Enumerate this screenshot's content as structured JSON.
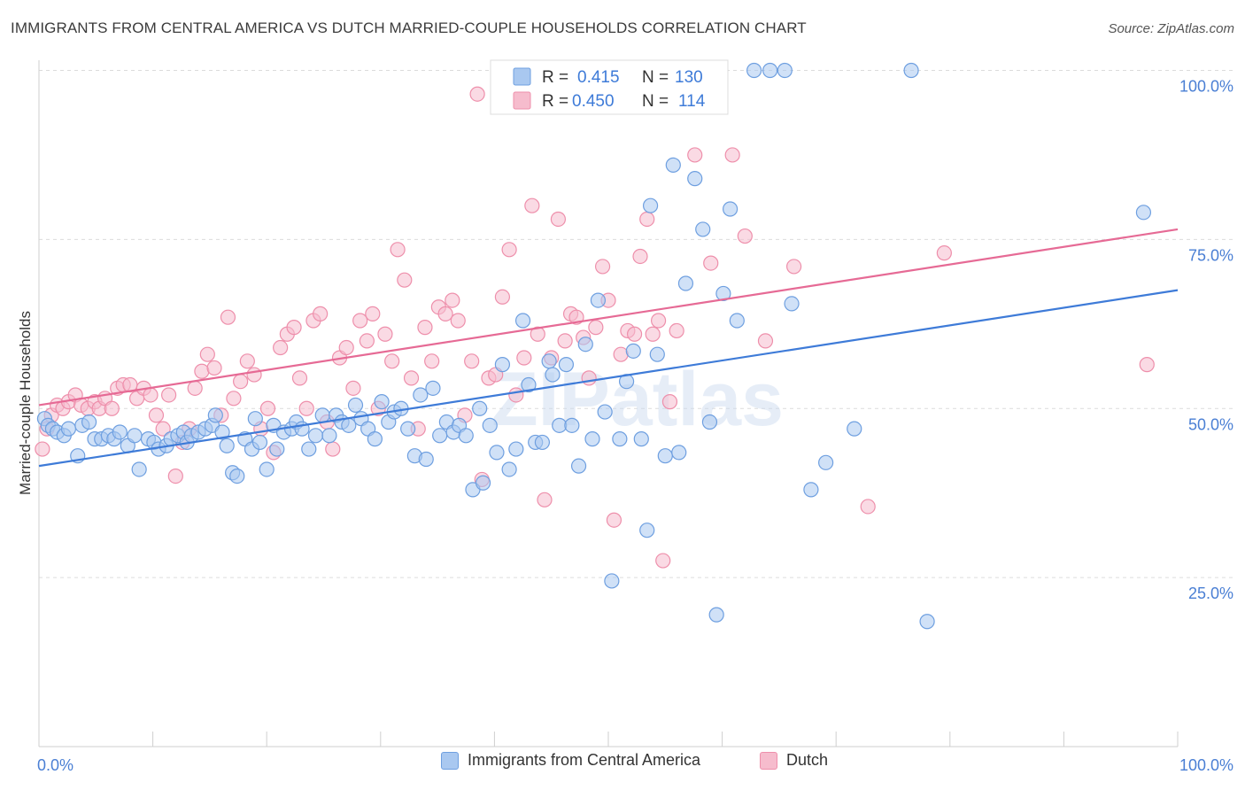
{
  "title": "IMMIGRANTS FROM CENTRAL AMERICA VS DUTCH MARRIED-COUPLE HOUSEHOLDS CORRELATION CHART",
  "source": "Source: ZipAtlas.com",
  "watermark": "ZIPatlas",
  "colors": {
    "blue_fill": "#a9c8f0",
    "blue_stroke": "#6e9fe0",
    "blue_line": "#3e7bd8",
    "pink_fill": "#f6bccd",
    "pink_stroke": "#ee8fab",
    "pink_line": "#e66a95",
    "tick_label": "#4a7fd4",
    "grid": "#dcdcdc"
  },
  "legend_top": {
    "rows": [
      {
        "r_label": "R =",
        "r_value": "0.415",
        "n_label": "N =",
        "n_value": "130",
        "series": "blue"
      },
      {
        "r_label": "R =",
        "r_value": "0.450",
        "n_label": "N =",
        "n_value": "114",
        "series": "pink"
      }
    ]
  },
  "legend_bottom": [
    {
      "label": "Immigrants from Central America",
      "series": "blue"
    },
    {
      "label": "Dutch",
      "series": "pink"
    }
  ],
  "chart_data": {
    "type": "scatter",
    "title": "IMMIGRANTS FROM CENTRAL AMERICA VS DUTCH MARRIED-COUPLE HOUSEHOLDS CORRELATION CHART",
    "xlabel": "",
    "ylabel": "Married-couple Households",
    "xlim": [
      0,
      100
    ],
    "ylim": [
      0,
      103
    ],
    "x_tick_labels": [
      "0.0%",
      "100.0%"
    ],
    "y_ticks": [
      25,
      50,
      75,
      100
    ],
    "y_tick_labels": [
      "25.0%",
      "50.0%",
      "75.0%",
      "100.0%"
    ],
    "grid": true,
    "legend_placement": "top-center",
    "series": [
      {
        "name": "Immigrants from Central America",
        "color": "#a9c8f0",
        "r": 0.415,
        "n": 130,
        "trend": [
          [
            0,
            41.5
          ],
          [
            100,
            67.5
          ]
        ],
        "points": [
          [
            0.5,
            48.5
          ],
          [
            0.8,
            47.5
          ],
          [
            1.2,
            47
          ],
          [
            1.6,
            46.5
          ],
          [
            2.2,
            46
          ],
          [
            2.6,
            47
          ],
          [
            3.4,
            43
          ],
          [
            3.8,
            47.5
          ],
          [
            4.4,
            48
          ],
          [
            4.9,
            45.5
          ],
          [
            5.5,
            45.5
          ],
          [
            6.1,
            46
          ],
          [
            6.6,
            45.5
          ],
          [
            7.1,
            46.5
          ],
          [
            7.8,
            44.5
          ],
          [
            8.4,
            46
          ],
          [
            8.8,
            41
          ],
          [
            9.6,
            45.5
          ],
          [
            10.1,
            45
          ],
          [
            10.5,
            44
          ],
          [
            11.2,
            44.5
          ],
          [
            11.6,
            45.5
          ],
          [
            12.2,
            46
          ],
          [
            12.7,
            46.5
          ],
          [
            13,
            45
          ],
          [
            13.4,
            46
          ],
          [
            14,
            46.5
          ],
          [
            14.6,
            47
          ],
          [
            15.2,
            47.5
          ],
          [
            15.5,
            49
          ],
          [
            16.1,
            46.5
          ],
          [
            16.5,
            44.5
          ],
          [
            17,
            40.5
          ],
          [
            17.4,
            40
          ],
          [
            18.1,
            45.5
          ],
          [
            18.7,
            44
          ],
          [
            19,
            48.5
          ],
          [
            19.4,
            45
          ],
          [
            20,
            41
          ],
          [
            20.6,
            47.5
          ],
          [
            20.9,
            44
          ],
          [
            21.5,
            46.5
          ],
          [
            22.2,
            47
          ],
          [
            22.6,
            48
          ],
          [
            23.1,
            47
          ],
          [
            23.7,
            44
          ],
          [
            24.3,
            46
          ],
          [
            24.9,
            49
          ],
          [
            25.5,
            46
          ],
          [
            26.1,
            49
          ],
          [
            26.6,
            48
          ],
          [
            27.2,
            47.5
          ],
          [
            27.8,
            50.5
          ],
          [
            28.3,
            48.5
          ],
          [
            28.9,
            47
          ],
          [
            29.5,
            45.5
          ],
          [
            30.1,
            51
          ],
          [
            30.7,
            48
          ],
          [
            31.2,
            49.5
          ],
          [
            31.8,
            50
          ],
          [
            32.4,
            47
          ],
          [
            33,
            43
          ],
          [
            33.5,
            52
          ],
          [
            34,
            42.5
          ],
          [
            34.6,
            53
          ],
          [
            35.2,
            46
          ],
          [
            35.8,
            48
          ],
          [
            36.4,
            46.5
          ],
          [
            36.9,
            47.5
          ],
          [
            37.5,
            46
          ],
          [
            38.1,
            38
          ],
          [
            38.7,
            50
          ],
          [
            39,
            39
          ],
          [
            39.6,
            47.5
          ],
          [
            40.2,
            43.5
          ],
          [
            40.7,
            56.5
          ],
          [
            41.3,
            41
          ],
          [
            41.9,
            44
          ],
          [
            42.5,
            63
          ],
          [
            43,
            53.5
          ],
          [
            43.6,
            45
          ],
          [
            44.2,
            45
          ],
          [
            44.8,
            57
          ],
          [
            45.1,
            55
          ],
          [
            45.7,
            47.5
          ],
          [
            46.3,
            56.5
          ],
          [
            46.8,
            47.5
          ],
          [
            47.4,
            41.5
          ],
          [
            48,
            59.5
          ],
          [
            48.6,
            45.5
          ],
          [
            49.1,
            66
          ],
          [
            49.7,
            49.5
          ],
          [
            50.3,
            24.5
          ],
          [
            51,
            45.5
          ],
          [
            51.6,
            54
          ],
          [
            52.2,
            58.5
          ],
          [
            52.9,
            45.5
          ],
          [
            53.4,
            32
          ],
          [
            53.7,
            80
          ],
          [
            54.3,
            58
          ],
          [
            55,
            43
          ],
          [
            55.7,
            86
          ],
          [
            56.2,
            43.5
          ],
          [
            56.8,
            68.5
          ],
          [
            57.6,
            84
          ],
          [
            58.3,
            76.5
          ],
          [
            58.9,
            48
          ],
          [
            59.5,
            19.5
          ],
          [
            60.1,
            67
          ],
          [
            60.7,
            79.5
          ],
          [
            61.3,
            63
          ],
          [
            62.8,
            100
          ],
          [
            64.2,
            100
          ],
          [
            65.5,
            100
          ],
          [
            66.1,
            65.5
          ],
          [
            67.8,
            38
          ],
          [
            69.1,
            42
          ],
          [
            71.6,
            47
          ],
          [
            76.6,
            100
          ],
          [
            78,
            18.5
          ],
          [
            97,
            79
          ]
        ]
      },
      {
        "name": "Dutch",
        "color": "#f6bccd",
        "r": 0.45,
        "n": 114,
        "trend": [
          [
            0,
            50.5
          ],
          [
            100,
            76.5
          ]
        ],
        "points": [
          [
            0.3,
            44
          ],
          [
            0.7,
            47
          ],
          [
            1.1,
            49
          ],
          [
            1.6,
            50.5
          ],
          [
            2.1,
            50
          ],
          [
            2.6,
            51
          ],
          [
            3.2,
            52
          ],
          [
            3.7,
            50.5
          ],
          [
            4.3,
            50
          ],
          [
            4.9,
            51
          ],
          [
            5.3,
            50
          ],
          [
            5.8,
            51.5
          ],
          [
            6.4,
            50
          ],
          [
            6.9,
            53
          ],
          [
            7.4,
            53.5
          ],
          [
            8,
            53.5
          ],
          [
            8.6,
            51.5
          ],
          [
            9.2,
            53
          ],
          [
            9.8,
            52
          ],
          [
            10.3,
            49
          ],
          [
            10.9,
            47
          ],
          [
            11.4,
            52
          ],
          [
            12,
            40
          ],
          [
            12.6,
            45
          ],
          [
            13.2,
            47
          ],
          [
            13.7,
            53
          ],
          [
            14.3,
            55.5
          ],
          [
            14.8,
            58
          ],
          [
            15.4,
            56
          ],
          [
            16,
            49
          ],
          [
            16.6,
            63.5
          ],
          [
            17.1,
            51.5
          ],
          [
            17.7,
            54
          ],
          [
            18.3,
            57
          ],
          [
            18.9,
            55
          ],
          [
            19.5,
            47
          ],
          [
            20.1,
            50
          ],
          [
            20.6,
            43.5
          ],
          [
            21.2,
            59
          ],
          [
            21.8,
            61
          ],
          [
            22.4,
            62
          ],
          [
            22.9,
            54.5
          ],
          [
            23.5,
            50
          ],
          [
            24.1,
            63
          ],
          [
            24.7,
            64
          ],
          [
            25.3,
            48
          ],
          [
            25.8,
            44
          ],
          [
            26.4,
            57.5
          ],
          [
            27,
            59
          ],
          [
            27.6,
            53
          ],
          [
            28.2,
            63
          ],
          [
            28.8,
            60
          ],
          [
            29.3,
            64
          ],
          [
            29.8,
            50
          ],
          [
            30.4,
            61
          ],
          [
            31,
            57
          ],
          [
            31.5,
            73.5
          ],
          [
            32.1,
            69
          ],
          [
            32.7,
            54.5
          ],
          [
            33.3,
            47
          ],
          [
            33.9,
            62
          ],
          [
            34.5,
            57
          ],
          [
            35.1,
            65
          ],
          [
            35.7,
            64
          ],
          [
            36.3,
            66
          ],
          [
            36.8,
            63
          ],
          [
            37.4,
            49
          ],
          [
            38,
            57
          ],
          [
            38.5,
            96.5
          ],
          [
            38.9,
            39.5
          ],
          [
            39.5,
            54.5
          ],
          [
            40.1,
            55
          ],
          [
            40.7,
            66.5
          ],
          [
            41.3,
            73.5
          ],
          [
            41.9,
            52
          ],
          [
            42.6,
            57.5
          ],
          [
            43.3,
            80
          ],
          [
            43.8,
            61
          ],
          [
            44.4,
            36.5
          ],
          [
            45,
            57.5
          ],
          [
            45.6,
            78
          ],
          [
            46.2,
            60
          ],
          [
            46.7,
            64
          ],
          [
            47.2,
            63.5
          ],
          [
            47.8,
            60.5
          ],
          [
            48.3,
            54.5
          ],
          [
            48.9,
            62
          ],
          [
            49.5,
            71
          ],
          [
            50,
            66
          ],
          [
            50.5,
            33.5
          ],
          [
            51.1,
            58
          ],
          [
            51.7,
            61.5
          ],
          [
            52.3,
            61
          ],
          [
            52.8,
            72.5
          ],
          [
            53.4,
            78
          ],
          [
            53.9,
            61
          ],
          [
            54.4,
            63
          ],
          [
            54.8,
            27.5
          ],
          [
            55.4,
            51
          ],
          [
            56,
            61.5
          ],
          [
            57.6,
            87.5
          ],
          [
            59,
            71.5
          ],
          [
            60.9,
            87.5
          ],
          [
            62,
            75.5
          ],
          [
            63.8,
            60
          ],
          [
            66.3,
            71
          ],
          [
            72.8,
            35.5
          ],
          [
            79.5,
            73
          ],
          [
            97.3,
            56.5
          ]
        ]
      }
    ]
  }
}
